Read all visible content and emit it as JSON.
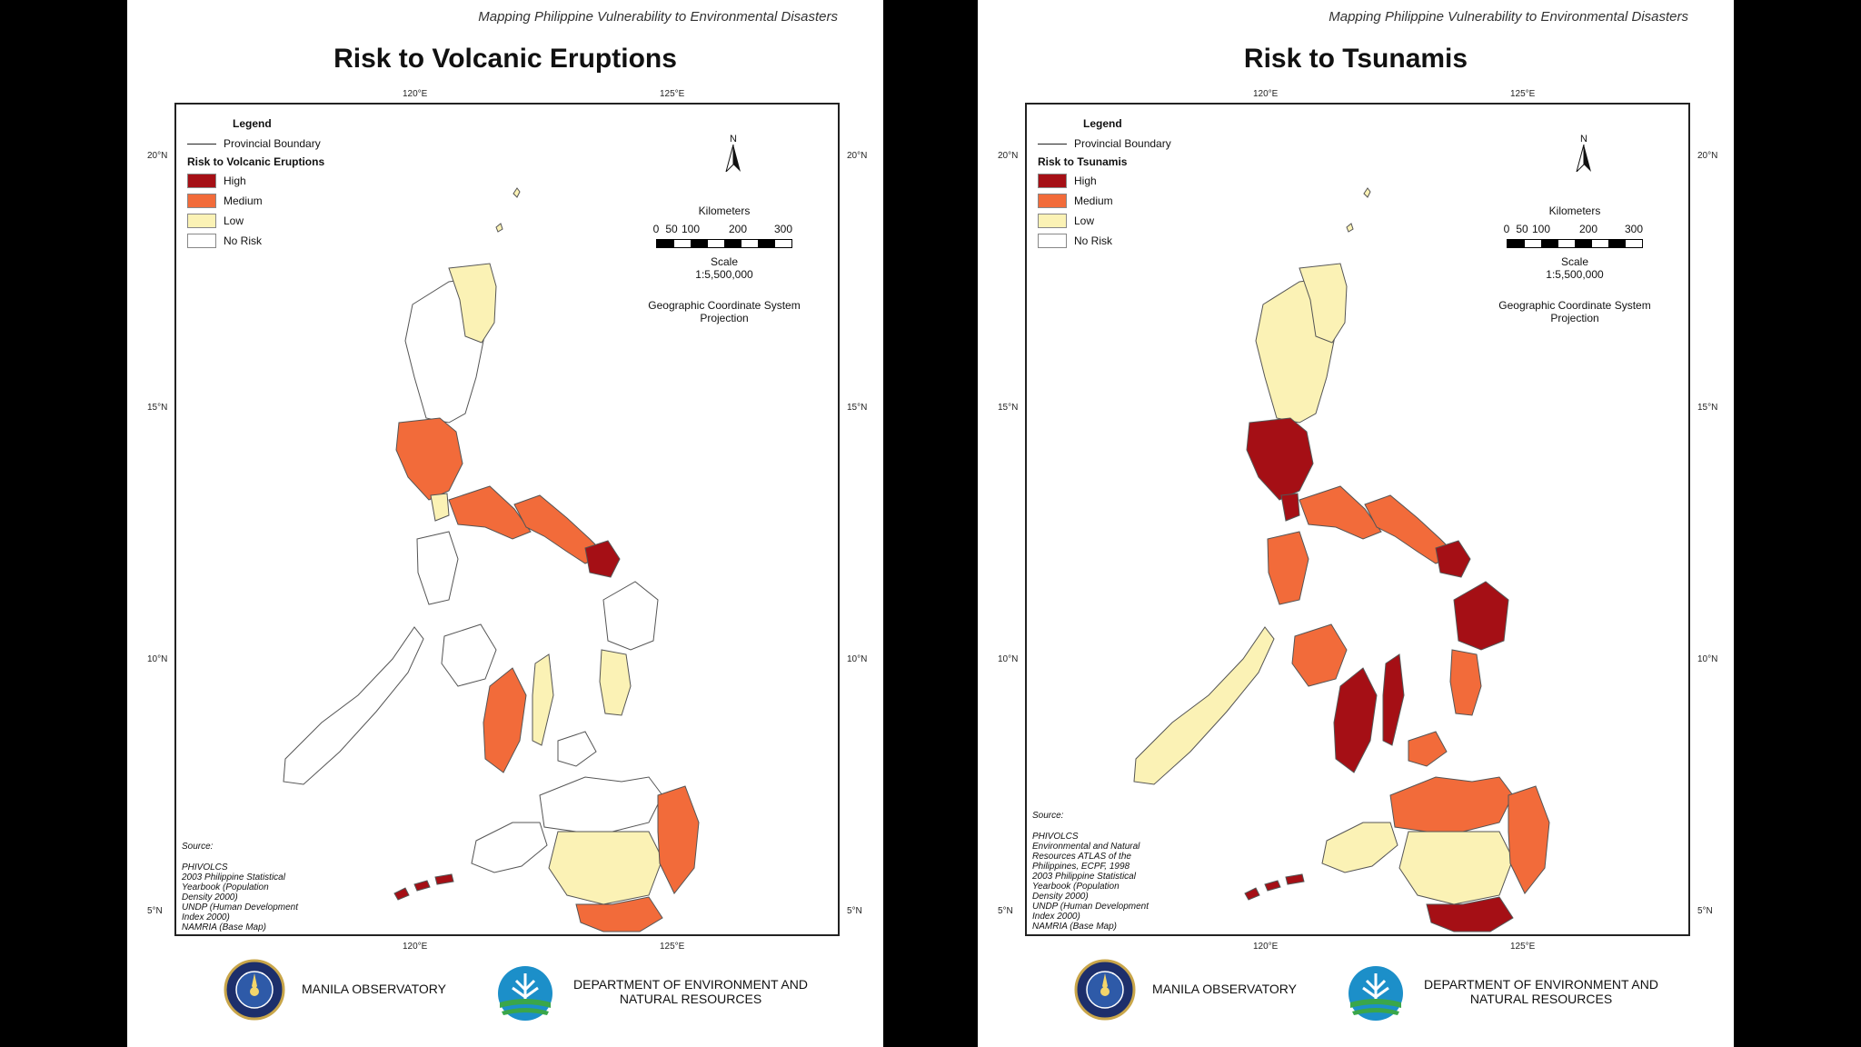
{
  "header_note": "Mapping Philippine Vulnerability to Environmental Disasters",
  "axes": {
    "lon_ticks": [
      "120°E",
      "125°E"
    ],
    "lat_ticks": [
      "20°N",
      "15°N",
      "10°N",
      "5°N"
    ]
  },
  "legend_common": {
    "title": "Legend",
    "boundary": "Provincial Boundary"
  },
  "risk_levels": [
    {
      "label": "High",
      "color": "#a50f15"
    },
    {
      "label": "Medium",
      "color": "#f26b3a"
    },
    {
      "label": "Low",
      "color": "#fbf2b5"
    },
    {
      "label": "No Risk",
      "color": "#ffffff"
    }
  ],
  "north_label": "N",
  "scale": {
    "unit": "Kilometers",
    "ticks": [
      "0",
      "50",
      "100",
      "200",
      "300"
    ],
    "scale_label": "Scale",
    "ratio": "1:5,500,000",
    "projection": "Geographic Coordinate System Projection"
  },
  "maps": [
    {
      "title": "Risk to Volcanic Eruptions",
      "legend_title": "Risk to Volcanic Eruptions",
      "source_label": "Source:",
      "source_lines": [
        "PHIVOLCS",
        "2003 Philippine Statistical",
        "Yearbook (Population",
        "Density 2000)",
        "UNDP (Human Development",
        "Index 2000)",
        "NAMRIA (Base Map)"
      ],
      "regions": {
        "northern_luzon": "No Risk",
        "cagayan": "Low",
        "central_luzon": "Medium",
        "bataan": "Low",
        "southern_luzon": "Medium",
        "bicol": "Medium",
        "albay_sorsogon": "High",
        "mindoro": "No Risk",
        "palawan": "No Risk",
        "panay": "No Risk",
        "negros": "Medium",
        "cebu": "Low",
        "bohol": "No Risk",
        "samar": "No Risk",
        "leyte": "Low",
        "mindanao_north": "No Risk",
        "mindanao_central": "Low",
        "davao_east": "Medium",
        "mindanao_south": "Medium",
        "zamboanga": "No Risk",
        "sulu": "High",
        "batanes": "Low"
      }
    },
    {
      "title": "Risk to Tsunamis",
      "legend_title": "Risk to Tsunamis",
      "source_label": "Source:",
      "source_lines": [
        "PHIVOLCS",
        "Environmental and Natural",
        "Resources ATLAS of the",
        "Philippines, ECPF, 1998",
        "2003 Philippine Statistical",
        "Yearbook (Population",
        "Density 2000)",
        "UNDP (Human Development",
        "Index 2000)",
        "NAMRIA (Base Map)"
      ],
      "regions": {
        "northern_luzon": "Low",
        "cagayan": "Low",
        "central_luzon": "High",
        "bataan": "High",
        "southern_luzon": "Medium",
        "bicol": "Medium",
        "albay_sorsogon": "High",
        "mindoro": "Medium",
        "palawan": "Low",
        "panay": "Medium",
        "negros": "High",
        "cebu": "High",
        "bohol": "Medium",
        "samar": "High",
        "leyte": "Medium",
        "mindanao_north": "Medium",
        "mindanao_central": "Low",
        "davao_east": "Medium",
        "mindanao_south": "High",
        "zamboanga": "Low",
        "sulu": "High",
        "batanes": "Low"
      }
    }
  ],
  "footer": {
    "org1": "MANILA OBSERVATORY",
    "org2": "DEPARTMENT OF ENVIRONMENT AND NATURAL RESOURCES"
  }
}
